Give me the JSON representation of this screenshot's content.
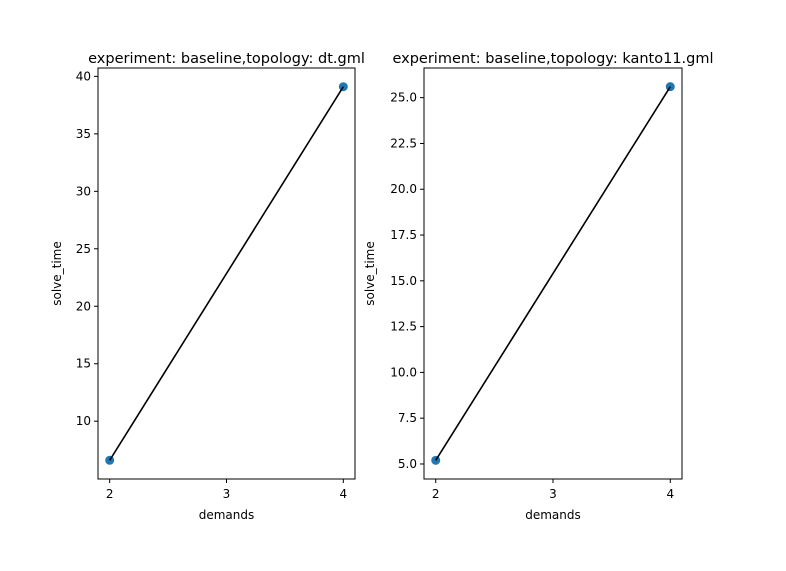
{
  "chart_data": [
    {
      "type": "scatter",
      "title": "experiment: baseline,topology: dt.gml",
      "xlabel": "demands",
      "ylabel": "solve_time",
      "x": [
        2,
        4
      ],
      "y": [
        6.6,
        39.1
      ],
      "xlim": [
        1.9,
        4.1
      ],
      "ylim": [
        4.97,
        40.73
      ],
      "xticks": [
        2,
        3,
        4
      ],
      "xtick_labels": [
        "2",
        "3",
        "4"
      ],
      "yticks": [
        10,
        15,
        20,
        25,
        30,
        35,
        40
      ],
      "ytick_labels": [
        "10",
        "15",
        "20",
        "25",
        "30",
        "35",
        "40"
      ],
      "fit_line": {
        "x": [
          2,
          4
        ],
        "y": [
          6.6,
          39.1
        ]
      },
      "grid": false,
      "point_color": "#1f77b4",
      "line_color": "#000000"
    },
    {
      "type": "scatter",
      "title": "experiment: baseline,topology: kanto11.gml",
      "xlabel": "demands",
      "ylabel": "solve_time",
      "x": [
        2,
        4
      ],
      "y": [
        5.2,
        25.6
      ],
      "xlim": [
        1.9,
        4.1
      ],
      "ylim": [
        4.18,
        26.62
      ],
      "xticks": [
        2,
        3,
        4
      ],
      "xtick_labels": [
        "2",
        "3",
        "4"
      ],
      "yticks": [
        5.0,
        7.5,
        10.0,
        12.5,
        15.0,
        17.5,
        20.0,
        22.5,
        25.0
      ],
      "ytick_labels": [
        "5.0",
        "7.5",
        "10.0",
        "12.5",
        "15.0",
        "17.5",
        "20.0",
        "22.5",
        "25.0"
      ],
      "fit_line": {
        "x": [
          2,
          4
        ],
        "y": [
          5.2,
          25.6
        ]
      },
      "grid": false,
      "point_color": "#1f77b4",
      "line_color": "#000000"
    }
  ]
}
